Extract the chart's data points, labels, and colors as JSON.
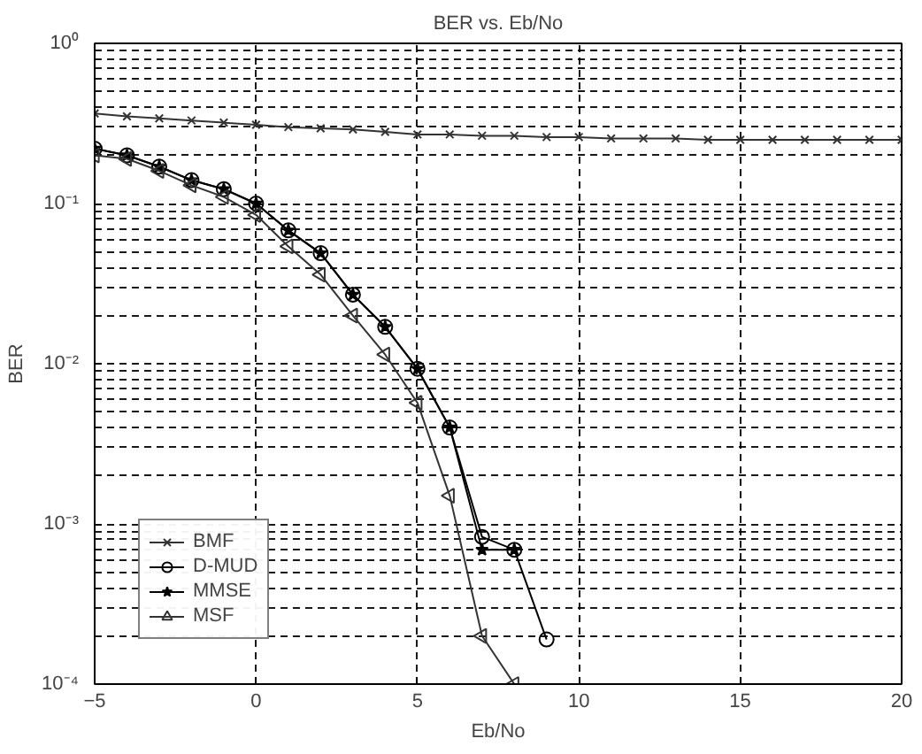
{
  "chart_data": {
    "type": "line",
    "title": "BER vs. Eb/No",
    "xlabel": "Eb/No",
    "ylabel": "BER",
    "log": "y",
    "grid": true,
    "legend": "bottom left",
    "line_style": "solid",
    "x": [
      -5,
      -4,
      -3,
      -2,
      -1,
      0,
      1,
      2,
      3,
      4,
      5,
      6,
      7,
      8,
      9,
      10,
      11,
      12,
      13,
      14,
      15,
      16,
      17,
      18,
      19,
      20
    ],
    "xlim": [
      -5,
      20
    ],
    "xticks": [
      -5,
      0,
      5,
      10,
      15,
      20
    ],
    "ylim": [
      0.0001,
      1
    ],
    "yticks": [
      {
        "value": 0.0001,
        "label": "10⁻⁴"
      },
      {
        "value": 0.001,
        "label": "10⁻³"
      },
      {
        "value": 0.01,
        "label": "10⁻²"
      },
      {
        "value": 0.1,
        "label": "10⁻¹"
      },
      {
        "value": 1,
        "label": "10⁰"
      }
    ],
    "series": [
      {
        "name": "BMF",
        "color": "#333333",
        "marker": "cross",
        "values": [
          0.365,
          0.35,
          0.34,
          0.33,
          0.32,
          0.31,
          0.3,
          0.295,
          0.29,
          0.28,
          0.27,
          0.27,
          0.265,
          0.265,
          0.26,
          0.26,
          0.255,
          0.255,
          0.255,
          0.25,
          0.25,
          0.25,
          0.25,
          0.25,
          0.25,
          0.25
        ]
      },
      {
        "name": "D-MUD",
        "color": "#000000",
        "marker": "circle",
        "values": [
          0.22,
          0.2,
          0.17,
          0.14,
          0.123,
          0.1,
          0.068,
          0.049,
          0.027,
          0.017,
          0.0093,
          0.004,
          0.00083,
          0.00069,
          0.00019,
          null,
          null,
          null,
          null,
          null,
          null,
          null,
          null,
          null,
          null,
          null
        ]
      },
      {
        "name": "MMSE",
        "color": "#000000",
        "marker": "star",
        "values": [
          0.22,
          0.2,
          0.17,
          0.14,
          0.123,
          0.1,
          0.068,
          0.049,
          0.027,
          0.017,
          0.0093,
          0.004,
          0.00069,
          0.00069,
          null,
          null,
          null,
          null,
          null,
          null,
          null,
          null,
          null,
          null,
          null,
          null
        ]
      },
      {
        "name": "MSF",
        "color": "#333333",
        "marker": "triangle",
        "values": [
          0.2,
          0.19,
          0.16,
          0.13,
          0.11,
          0.085,
          0.054,
          0.036,
          0.02,
          0.0114,
          0.0057,
          0.0015,
          0.0002,
          0.0001,
          null,
          null,
          null,
          null,
          null,
          null,
          null,
          null,
          null,
          null,
          null,
          null
        ]
      }
    ]
  }
}
